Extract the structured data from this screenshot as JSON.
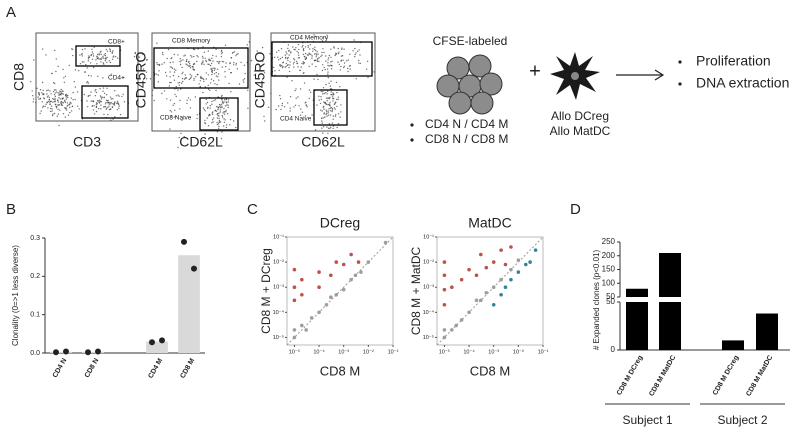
{
  "panel_labels": [
    "A",
    "B",
    "C",
    "D"
  ],
  "panel_a": {
    "plots": [
      {
        "y_label": "CD8",
        "x_label": "CD3",
        "gates": [
          "CD8+",
          "CD4+"
        ]
      },
      {
        "y_label": "CD45RO",
        "x_label": "CD62L",
        "gates": [
          "CD8 Memory",
          "CD8 Naive"
        ]
      },
      {
        "y_label": "CD45RO",
        "x_label": "CD62L",
        "gates": [
          "CD4 Memory",
          "CD4 Naive"
        ]
      }
    ],
    "schematic": {
      "cells_label": "CFSE-labeled",
      "cell_types": [
        "CD4 N / CD4 M",
        "CD8 N / CD8 M"
      ],
      "plus": "+",
      "dc_types": [
        "Allo DCreg",
        "Allo MatDC"
      ],
      "readouts": [
        "Proliferation",
        "DNA extraction"
      ]
    }
  },
  "chart_data": [
    {
      "type": "bar",
      "y_label": "Clonality (0=>1 less diverse)",
      "categories": [
        "CD4 N",
        "CD8 N",
        null,
        "CD4 M",
        "CD8 M"
      ],
      "values": [
        0.003,
        0.003,
        null,
        0.03,
        0.255
      ],
      "points": [
        [
          0.002,
          0.004
        ],
        [
          0.002,
          0.004
        ],
        null,
        [
          0.028,
          0.033
        ],
        [
          0.29,
          0.22
        ]
      ],
      "color": "#d9d9d9",
      "point_color": "#222222",
      "ylim": [
        0,
        0.3
      ],
      "yticks": [
        {
          "value": 0,
          "label": "0.0"
        },
        0.1,
        0.2,
        0.3
      ]
    },
    {
      "type": "scatter",
      "title": "DCreg",
      "x_label": "CD8 M",
      "y_label": "CD8 M + DCreg",
      "log": true,
      "xlim": [
        5e-06,
        0.1
      ],
      "ylim": [
        5e-06,
        0.1
      ],
      "xticks": [
        {
          "value": 1e-05,
          "label": "10⁻⁵"
        },
        {
          "value": 0.0001,
          "label": "10⁻⁴"
        },
        {
          "value": 0.001,
          "label": "10⁻³"
        },
        {
          "value": 0.01,
          "label": "10⁻²"
        },
        {
          "value": 0.1,
          "label": "10⁻¹"
        }
      ],
      "yticks": [
        {
          "value": 1e-05,
          "label": "10⁻⁵"
        },
        {
          "value": 0.0001,
          "label": "10⁻⁴"
        },
        {
          "value": 0.001,
          "label": "10⁻³"
        },
        {
          "value": 0.01,
          "label": "10⁻²"
        },
        {
          "value": 0.1,
          "label": "10⁻¹"
        }
      ],
      "series": [
        {
          "color": "#9e9e9e",
          "x": [
            1e-05,
            1e-05,
            2e-05,
            3e-05,
            5e-05,
            0.0001,
            0.0002,
            0.0003,
            0.0005,
            0.001,
            0.002,
            0.003,
            0.005,
            0.01,
            0.05
          ],
          "values": [
            1e-05,
            2e-05,
            3e-05,
            2e-05,
            6e-05,
            0.0001,
            0.0002,
            0.0004,
            0.0005,
            0.0008,
            0.002,
            0.003,
            0.004,
            0.01,
            0.06
          ]
        },
        {
          "color": "#c0504d",
          "x": [
            1e-05,
            1e-05,
            1e-05,
            2e-05,
            2e-05,
            0.0001,
            0.0001,
            0.0003,
            0.0005,
            0.001,
            0.002,
            0.004
          ],
          "values": [
            0.0003,
            0.001,
            0.005,
            0.0005,
            0.002,
            0.001,
            0.004,
            0.003,
            0.01,
            0.008,
            0.02,
            0.01
          ]
        }
      ]
    },
    {
      "type": "scatter",
      "title": "MatDC",
      "x_label": "CD8 M",
      "y_label": "CD8 M + MatDC",
      "log": true,
      "xlim": [
        5e-06,
        0.1
      ],
      "ylim": [
        5e-06,
        0.1
      ],
      "xticks": [
        {
          "value": 1e-05,
          "label": "10⁻⁵"
        },
        {
          "value": 0.0001,
          "label": "10⁻⁴"
        },
        {
          "value": 0.001,
          "label": "10⁻³"
        },
        {
          "value": 0.01,
          "label": "10⁻²"
        },
        {
          "value": 0.1,
          "label": "10⁻¹"
        }
      ],
      "yticks": [
        {
          "value": 1e-05,
          "label": "10⁻⁵"
        },
        {
          "value": 0.0001,
          "label": "10⁻⁴"
        },
        {
          "value": 0.001,
          "label": "10⁻³"
        },
        {
          "value": 0.01,
          "label": "10⁻²"
        },
        {
          "value": 0.1,
          "label": "10⁻¹"
        }
      ],
      "series": [
        {
          "color": "#9e9e9e",
          "x": [
            1e-05,
            1e-05,
            2e-05,
            3e-05,
            5e-05,
            0.0001,
            0.0002,
            0.0003,
            0.0005,
            0.001,
            0.002,
            0.005,
            0.01
          ],
          "values": [
            1e-05,
            2e-05,
            2e-05,
            3e-05,
            5e-05,
            0.0001,
            0.0003,
            0.0003,
            0.0006,
            0.001,
            0.002,
            0.005,
            0.012
          ]
        },
        {
          "color": "#c0504d",
          "x": [
            1e-05,
            1e-05,
            1e-05,
            1e-05,
            2e-05,
            5e-05,
            0.0001,
            0.0002,
            0.0003,
            0.0005,
            0.001,
            0.002,
            0.003,
            0.005
          ],
          "values": [
            0.0002,
            0.0008,
            0.003,
            0.01,
            0.001,
            0.002,
            0.005,
            0.003,
            0.02,
            0.006,
            0.01,
            0.03,
            0.008,
            0.04
          ]
        },
        {
          "color": "#31859c",
          "x": [
            0.001,
            0.002,
            0.003,
            0.005,
            0.01,
            0.02,
            0.03,
            0.05
          ],
          "values": [
            0.0002,
            0.0005,
            0.001,
            0.002,
            0.004,
            0.008,
            0.01,
            0.03
          ]
        }
      ]
    },
    {
      "type": "broken_bar",
      "y_label": "# Expanded clones (p<0.01)",
      "color": "#000000",
      "segments": [
        {
          "ylim": [
            0,
            50
          ],
          "yticks": [
            0,
            50
          ]
        },
        {
          "ylim": [
            50,
            250
          ],
          "yticks": [
            50,
            100,
            150,
            200,
            250
          ]
        }
      ],
      "groups": [
        {
          "name": "Subject 1",
          "categories": [
            "CD8 M DCreg",
            "CD8 M MatDC"
          ],
          "values": [
            80,
            210
          ]
        },
        {
          "name": "Subject 2",
          "categories": [
            "CD8 M DCreg",
            "CD8 M MatDC"
          ],
          "values": [
            10,
            38
          ]
        }
      ]
    }
  ]
}
